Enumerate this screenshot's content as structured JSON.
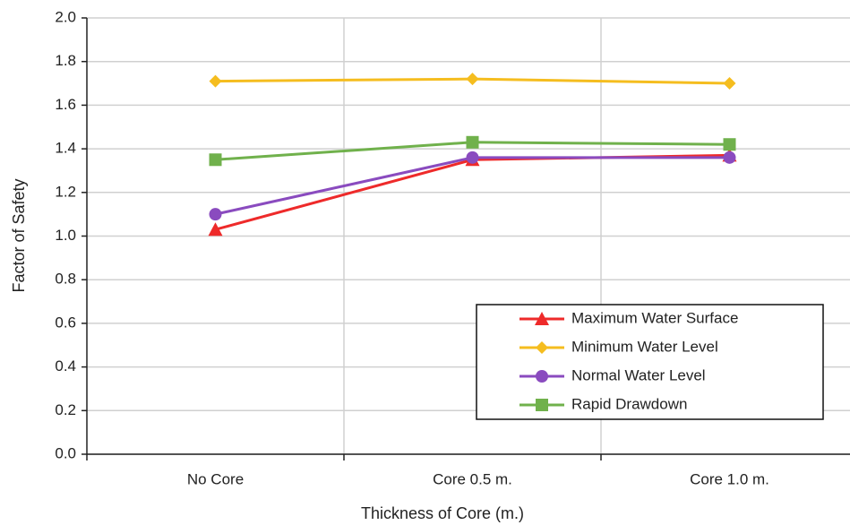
{
  "chart_data": {
    "type": "line",
    "x_label": "Thickness of Core (m.)",
    "y_label": "Factor of Safety",
    "categories": [
      "No Core",
      "Core 0.5 m.",
      "Core 1.0 m."
    ],
    "series": [
      {
        "name": "Maximum Water Surface",
        "color": "#ee2a2a",
        "marker": "triangle",
        "values": [
          1.03,
          1.35,
          1.37
        ]
      },
      {
        "name": "Minimum Water Level",
        "color": "#f5bd1f",
        "marker": "diamond",
        "values": [
          1.71,
          1.72,
          1.7
        ]
      },
      {
        "name": "Normal Water Level",
        "color": "#8a4bbf",
        "marker": "circle",
        "values": [
          1.1,
          1.36,
          1.36
        ]
      },
      {
        "name": "Rapid Drawdown",
        "color": "#70b14c",
        "marker": "square",
        "values": [
          1.35,
          1.43,
          1.42
        ]
      }
    ],
    "ylim": [
      0,
      2
    ],
    "yticks": [
      {
        "value": 0,
        "label": "0.0"
      },
      0.2,
      0.4,
      0.6,
      0.8,
      {
        "value": 1,
        "label": "1.0"
      },
      1.2,
      1.4,
      1.6,
      1.8,
      {
        "value": 2,
        "label": "2.0"
      }
    ],
    "grid": true,
    "legend": "lower right"
  }
}
